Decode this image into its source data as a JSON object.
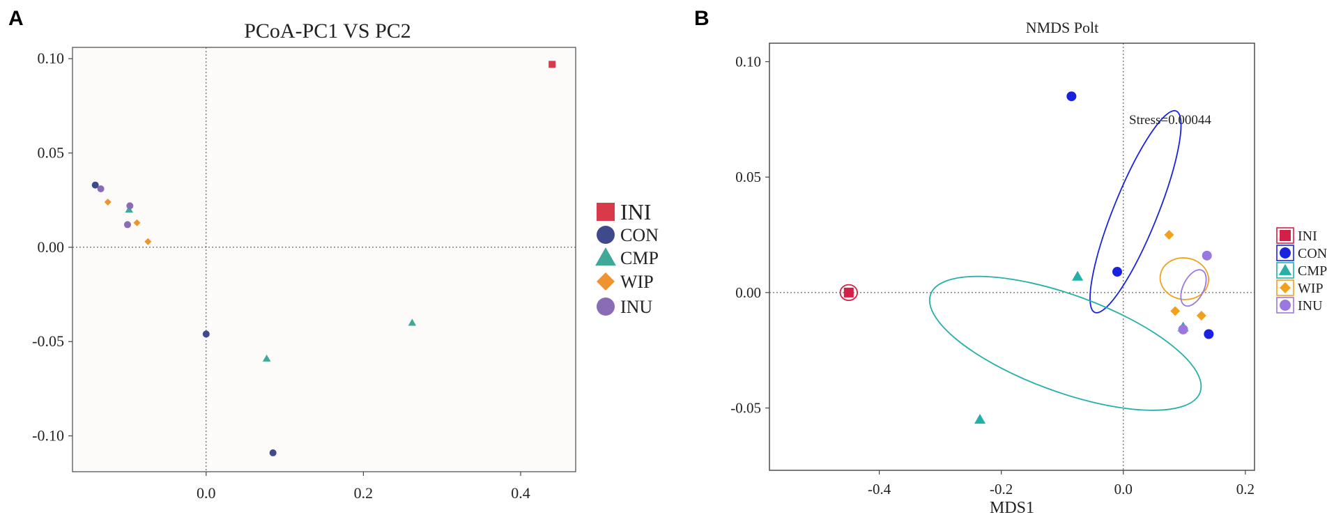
{
  "panels": {
    "a_letter": "A",
    "b_letter": "B"
  },
  "chart_data": [
    {
      "type": "scatter",
      "title": "PCoA-PC1 VS PC2",
      "xlabel": "",
      "ylabel": "",
      "xlim": [
        -0.17,
        0.47
      ],
      "ylim": [
        -0.119,
        0.106
      ],
      "xticks": [
        0.0,
        0.2,
        0.4
      ],
      "xtick_labels": [
        "0.0",
        "0.2",
        "0.4"
      ],
      "yticks": [
        0.1,
        0.05,
        0.0,
        -0.05,
        -0.1
      ],
      "ytick_labels": [
        "0.10",
        "0.05",
        "0.00",
        "-0.05",
        "-0.10"
      ],
      "reference_lines": {
        "x": 0,
        "y": 0
      },
      "legend_position": "right",
      "series": [
        {
          "name": "INI",
          "marker": "square",
          "color": "#d93a4a",
          "points": [
            [
              0.44,
              0.097
            ]
          ]
        },
        {
          "name": "CON",
          "marker": "circle",
          "color": "#3e4a8c",
          "points": [
            [
              -0.141,
              0.033
            ],
            [
              0.0,
              -0.046
            ],
            [
              0.085,
              -0.109
            ]
          ]
        },
        {
          "name": "CMP",
          "marker": "triangle",
          "color": "#3fa898",
          "points": [
            [
              -0.098,
              0.02
            ],
            [
              0.077,
              -0.059
            ],
            [
              0.262,
              -0.04
            ]
          ]
        },
        {
          "name": "WIP",
          "marker": "diamond",
          "color": "#f0922e",
          "points": [
            [
              -0.125,
              0.024
            ],
            [
              -0.088,
              0.013
            ],
            [
              -0.074,
              0.003
            ]
          ]
        },
        {
          "name": "INU",
          "marker": "circle",
          "color": "#8a6bb5",
          "points": [
            [
              -0.134,
              0.031
            ],
            [
              -0.097,
              0.022
            ],
            [
              -0.1,
              0.012
            ]
          ]
        }
      ]
    },
    {
      "type": "scatter",
      "title": "NMDS Polt",
      "xlabel": "MDS1",
      "ylabel": "",
      "annotation": "Stress=0.00044",
      "xlim": [
        -0.58,
        0.215
      ],
      "ylim": [
        -0.077,
        0.108
      ],
      "xticks": [
        -0.4,
        -0.2,
        0.0,
        0.2
      ],
      "xtick_labels": [
        "-0.4",
        "-0.2",
        "0.0",
        "0.2"
      ],
      "yticks": [
        0.1,
        0.05,
        0.0,
        -0.05
      ],
      "ytick_labels": [
        "0.10",
        "0.05",
        "0.00",
        "-0.05"
      ],
      "reference_lines": {
        "x": 0,
        "y": 0
      },
      "legend_position": "right",
      "series": [
        {
          "name": "INI",
          "marker": "square",
          "color": "#d41f47",
          "points": [
            [
              -0.45,
              0.0
            ]
          ]
        },
        {
          "name": "CON",
          "marker": "circle",
          "color": "#1a22e0",
          "points": [
            [
              -0.085,
              0.085
            ],
            [
              -0.01,
              0.009
            ],
            [
              0.14,
              -0.018
            ]
          ]
        },
        {
          "name": "CMP",
          "marker": "triangle",
          "color": "#24b0a8",
          "points": [
            [
              -0.075,
              0.007
            ],
            [
              -0.235,
              -0.055
            ],
            [
              0.098,
              -0.015
            ]
          ]
        },
        {
          "name": "WIP",
          "marker": "diamond",
          "color": "#f0a21e",
          "points": [
            [
              0.075,
              0.025
            ],
            [
              0.085,
              -0.008
            ],
            [
              0.128,
              -0.01
            ]
          ]
        },
        {
          "name": "INU",
          "marker": "circle",
          "color": "#9a78e0",
          "points": [
            [
              0.137,
              0.016
            ],
            [
              0.098,
              -0.016
            ]
          ]
        }
      ],
      "ellipses": [
        {
          "group": "INI",
          "center": [
            -0.45,
            0.0
          ],
          "radii": [
            0.014,
            0.0034
          ],
          "angle_deg": 0,
          "color": "#d41f47"
        },
        {
          "group": "CON",
          "center": [
            0.02,
            0.035
          ],
          "radii": [
            0.178,
            0.0095
          ],
          "angle_deg": -68,
          "color": "#1a22e0"
        },
        {
          "group": "CMP",
          "center": [
            -0.095,
            -0.022
          ],
          "radii": [
            0.235,
            0.021
          ],
          "angle_deg": 20,
          "color": "#24b0a8"
        },
        {
          "group": "WIP",
          "center": [
            0.1,
            0.006
          ],
          "radii": [
            0.034,
            0.0105
          ],
          "angle_deg": -82,
          "color": "#f0a21e"
        },
        {
          "group": "INU",
          "center": [
            0.115,
            0.002
          ],
          "radii": [
            0.032,
            0.0045
          ],
          "angle_deg": -64,
          "color": "#9a78e0"
        }
      ]
    }
  ]
}
